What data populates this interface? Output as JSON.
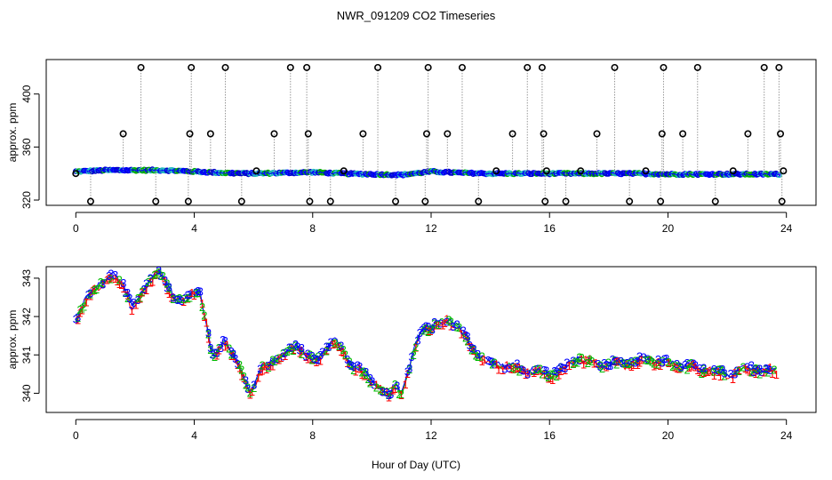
{
  "chart_data": [
    {
      "type": "scatter",
      "title": "NWR_091209  CO2 Timeseries",
      "xlabel": "",
      "ylabel": "approx. ppm",
      "xlim": [
        -1,
        25
      ],
      "ylim": [
        316,
        426
      ],
      "x_ticks": [
        0,
        4,
        8,
        12,
        16,
        20,
        24
      ],
      "y_ticks": [
        320,
        360,
        400
      ],
      "legend": "none",
      "baseline": {
        "x": [
          0,
          1,
          2,
          3,
          4,
          5,
          6,
          7,
          8,
          9,
          10,
          11,
          12,
          13,
          14,
          15,
          16,
          17,
          18,
          19,
          20,
          21,
          22,
          23,
          23.8
        ],
        "y": [
          341.5,
          342.5,
          342.5,
          342.5,
          341.5,
          340.5,
          340.0,
          340.5,
          341.0,
          340.0,
          339.5,
          339.0,
          341.5,
          340.5,
          340.0,
          340.0,
          340.0,
          340.0,
          340.0,
          340.0,
          339.5,
          339.5,
          339.5,
          339.5,
          339.5
        ]
      },
      "spikes": {
        "x": [
          0.0,
          0.5,
          1.6,
          2.2,
          2.7,
          3.8,
          3.85,
          3.9,
          4.55,
          5.05,
          5.6,
          6.1,
          6.7,
          7.25,
          7.8,
          7.85,
          7.9,
          8.6,
          9.05,
          9.7,
          10.2,
          10.8,
          11.8,
          11.85,
          11.9,
          12.55,
          13.05,
          13.6,
          14.2,
          14.75,
          15.25,
          15.75,
          15.8,
          15.85,
          15.9,
          16.55,
          17.05,
          17.6,
          18.2,
          18.7,
          19.25,
          19.75,
          19.8,
          19.85,
          20.5,
          21.0,
          21.6,
          22.2,
          22.7,
          23.25,
          23.75,
          23.8,
          23.85,
          23.9
        ],
        "y": [
          340,
          319,
          370,
          420,
          319,
          319,
          370,
          420,
          370,
          420,
          319,
          342,
          370,
          420,
          420,
          370,
          319,
          319,
          342,
          370,
          420,
          319,
          319,
          370,
          420,
          370,
          420,
          319,
          342,
          370,
          420,
          420,
          370,
          319,
          342,
          319,
          342,
          370,
          420,
          319,
          342,
          319,
          370,
          420,
          370,
          420,
          319,
          342,
          370,
          420,
          420,
          370,
          319,
          342
        ]
      }
    },
    {
      "type": "scatter",
      "title": "",
      "xlabel": "Hour of Day (UTC)",
      "ylabel": "approx. ppm",
      "xlim": [
        -1,
        25
      ],
      "ylim": [
        339.5,
        343.3
      ],
      "x_ticks": [
        0,
        4,
        8,
        12,
        16,
        20,
        24
      ],
      "y_ticks": [
        340,
        341,
        342,
        343
      ],
      "legend": "none",
      "series_markers": [
        "1",
        "2",
        "3"
      ],
      "series_colors": [
        "#ff0000",
        "#00bb00",
        "#0000ff"
      ],
      "knots": {
        "x": [
          0.0,
          0.3,
          0.6,
          1.0,
          1.3,
          1.6,
          1.9,
          2.2,
          2.5,
          2.8,
          3.1,
          3.4,
          3.7,
          4.0,
          4.2,
          4.4,
          4.6,
          4.8,
          5.0,
          5.3,
          5.6,
          5.9,
          6.1,
          6.3,
          6.6,
          6.9,
          7.2,
          7.5,
          7.8,
          8.1,
          8.4,
          8.7,
          9.0,
          9.3,
          9.6,
          9.9,
          10.2,
          10.4,
          10.6,
          10.8,
          11.0,
          11.2,
          11.4,
          11.6,
          11.8,
          12.0,
          12.3,
          12.6,
          12.9,
          13.2,
          13.5,
          13.8,
          14.1,
          14.5,
          15.0,
          15.5,
          16.0,
          16.5,
          17.0,
          17.5,
          18.0,
          18.5,
          19.0,
          19.5,
          20.0,
          20.5,
          21.0,
          21.5,
          22.0,
          22.5,
          23.0,
          23.7
        ],
        "y": [
          341.9,
          342.3,
          342.7,
          342.9,
          343.1,
          342.9,
          342.2,
          342.6,
          342.9,
          343.1,
          342.8,
          342.5,
          342.4,
          342.7,
          342.6,
          341.8,
          340.9,
          341.1,
          341.4,
          341.0,
          340.6,
          340.0,
          340.3,
          340.6,
          340.8,
          340.9,
          341.1,
          341.3,
          341.0,
          340.8,
          341.1,
          341.3,
          341.1,
          340.8,
          340.6,
          340.4,
          340.2,
          340.0,
          339.9,
          340.2,
          340.0,
          340.5,
          341.0,
          341.6,
          341.8,
          341.7,
          341.8,
          341.9,
          341.7,
          341.4,
          341.1,
          340.9,
          340.8,
          340.7,
          340.6,
          340.6,
          340.5,
          340.6,
          340.9,
          340.8,
          340.8,
          340.7,
          340.8,
          340.9,
          340.8,
          340.7,
          340.6,
          340.6,
          340.5,
          340.6,
          340.6,
          340.6
        ]
      }
    }
  ]
}
